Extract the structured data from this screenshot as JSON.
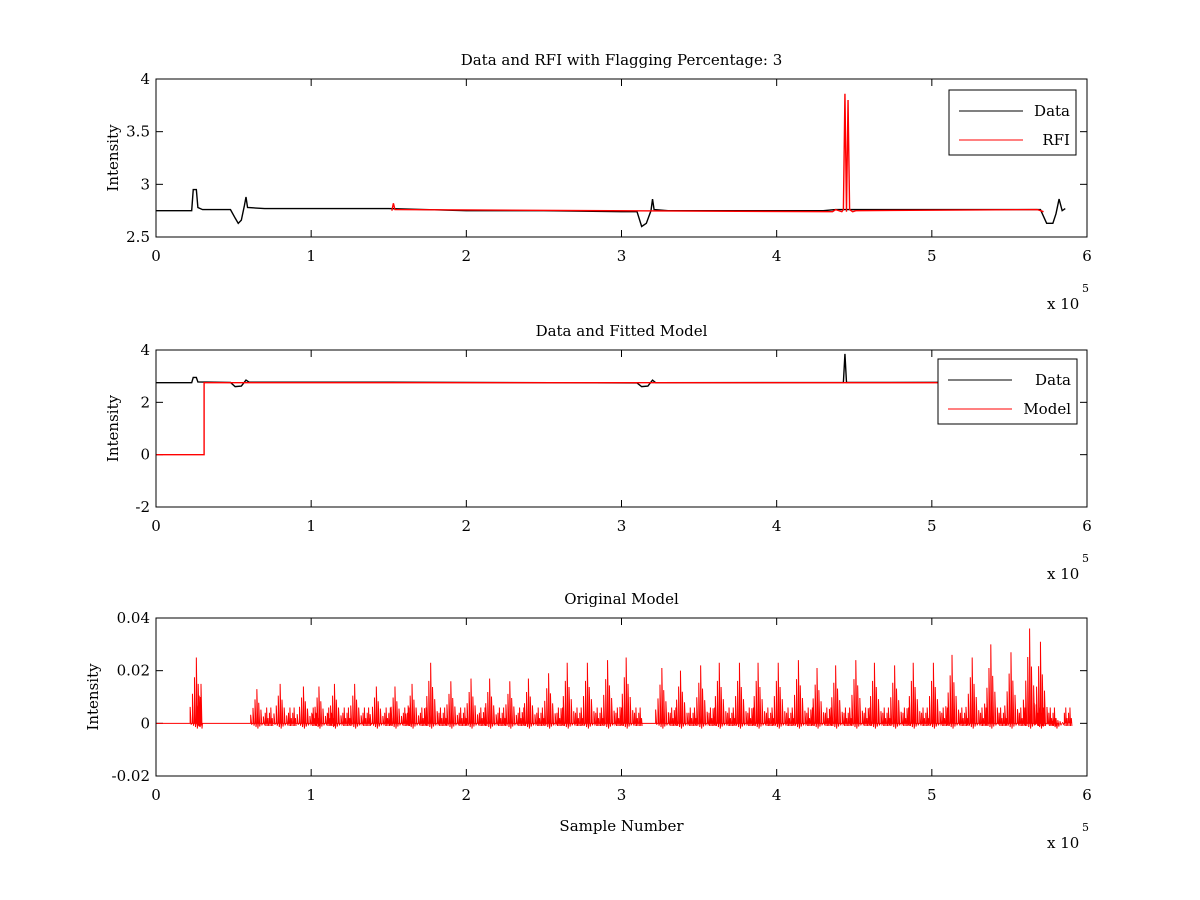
{
  "chart_data": [
    {
      "type": "line",
      "title": "Data and RFI with Flagging Percentage: 3",
      "xlabel": "",
      "ylabel": "Intensity",
      "xlim": [
        0,
        600000
      ],
      "ylim": [
        2.5,
        4
      ],
      "x_exponent_label": "x 10",
      "x_exponent": "5",
      "xticks": [
        0,
        100000,
        200000,
        300000,
        400000,
        500000,
        600000
      ],
      "xtick_labels": [
        "0",
        "1",
        "2",
        "3",
        "4",
        "5",
        "6"
      ],
      "yticks": [
        2.5,
        3,
        3.5,
        4
      ],
      "ytick_labels": [
        "2.5",
        "3",
        "3.5",
        "4"
      ],
      "legend_position": "top-right",
      "series": [
        {
          "name": "Data",
          "color": "#000000",
          "x": [
            0,
            23000,
            24000,
            26000,
            27000,
            30000,
            48000,
            51000,
            53000,
            55000,
            57000,
            58000,
            59000,
            70000,
            100000,
            150000,
            200000,
            250000,
            300000,
            310000,
            313000,
            316000,
            319000,
            320000,
            321000,
            330000,
            380000,
            430000,
            438000,
            440000,
            443000,
            446000,
            448000,
            455000,
            500000,
            550000,
            570000,
            574000,
            578000,
            580000,
            582000,
            584000,
            586000
          ],
          "y": [
            2.75,
            2.75,
            2.95,
            2.95,
            2.78,
            2.76,
            2.76,
            2.68,
            2.63,
            2.66,
            2.8,
            2.88,
            2.78,
            2.77,
            2.77,
            2.77,
            2.75,
            2.75,
            2.74,
            2.74,
            2.6,
            2.63,
            2.75,
            2.86,
            2.76,
            2.75,
            2.75,
            2.75,
            2.76,
            2.76,
            2.76,
            2.76,
            2.76,
            2.76,
            2.76,
            2.76,
            2.76,
            2.63,
            2.63,
            2.72,
            2.86,
            2.75,
            2.77
          ]
        },
        {
          "name": "RFI",
          "color": "#ff0000",
          "x": [
            152000,
            153000,
            154000,
            436000,
            438000,
            442000,
            443000,
            444000,
            445000,
            446000,
            447000,
            449000,
            451000,
            568000,
            572000
          ],
          "y": [
            2.75,
            2.82,
            2.76,
            2.74,
            2.76,
            2.74,
            2.76,
            3.86,
            2.74,
            3.8,
            2.76,
            2.74,
            2.75,
            2.76,
            2.74
          ]
        }
      ]
    },
    {
      "type": "line",
      "title": "Data and Fitted Model",
      "xlabel": "",
      "ylabel": "Intensity",
      "xlim": [
        0,
        600000
      ],
      "ylim": [
        -2,
        4
      ],
      "x_exponent_label": "x 10",
      "x_exponent": "5",
      "xticks": [
        0,
        100000,
        200000,
        300000,
        400000,
        500000,
        600000
      ],
      "xtick_labels": [
        "0",
        "1",
        "2",
        "3",
        "4",
        "5",
        "6"
      ],
      "yticks": [
        -2,
        0,
        2,
        4
      ],
      "ytick_labels": [
        "-2",
        "0",
        "2",
        "4"
      ],
      "legend_position": "top-right",
      "series": [
        {
          "name": "Data",
          "color": "#000000",
          "x": [
            0,
            23000,
            24000,
            26000,
            27000,
            48000,
            51000,
            55000,
            58000,
            60000,
            150000,
            310000,
            313000,
            317000,
            320000,
            322000,
            443000,
            444000,
            445000,
            446000,
            586000
          ],
          "y": [
            2.75,
            2.75,
            2.95,
            2.95,
            2.78,
            2.76,
            2.6,
            2.62,
            2.85,
            2.77,
            2.77,
            2.74,
            2.6,
            2.62,
            2.85,
            2.75,
            2.76,
            3.85,
            2.76,
            2.76,
            2.77
          ]
        },
        {
          "name": "Model",
          "color": "#ff0000",
          "x": [
            0,
            31000,
            31000,
            586000
          ],
          "y": [
            0,
            0,
            2.75,
            2.75
          ]
        }
      ]
    },
    {
      "type": "line",
      "title": "Original Model",
      "xlabel": "Sample Number",
      "ylabel": "Intensity",
      "xlim": [
        0,
        600000
      ],
      "ylim": [
        -0.02,
        0.04
      ],
      "x_exponent_label": "x 10",
      "x_exponent": "5",
      "xticks": [
        0,
        100000,
        200000,
        300000,
        400000,
        500000,
        600000
      ],
      "xtick_labels": [
        "0",
        "1",
        "2",
        "3",
        "4",
        "5",
        "6"
      ],
      "yticks": [
        -0.02,
        0,
        0.02,
        0.04
      ],
      "ytick_labels": [
        "-0.02",
        "0",
        "0.02",
        "0.04"
      ],
      "series": [
        {
          "color": "#ff0000",
          "x_start": 0,
          "x_end": 582000,
          "baseline": 0,
          "gaps": [
            [
              30000,
              58000
            ],
            [
              318000,
              320000
            ]
          ],
          "spikes": [
            {
              "x": 26000,
              "h": 0.025
            },
            {
              "x": 29000,
              "h": 0.015
            },
            {
              "x": 65000,
              "h": 0.013
            },
            {
              "x": 80000,
              "h": 0.015
            },
            {
              "x": 95000,
              "h": 0.014
            },
            {
              "x": 105000,
              "h": 0.014
            },
            {
              "x": 115000,
              "h": 0.015
            },
            {
              "x": 128000,
              "h": 0.015
            },
            {
              "x": 142000,
              "h": 0.014
            },
            {
              "x": 154000,
              "h": 0.014
            },
            {
              "x": 165000,
              "h": 0.015
            },
            {
              "x": 177000,
              "h": 0.023
            },
            {
              "x": 190000,
              "h": 0.016
            },
            {
              "x": 203000,
              "h": 0.017
            },
            {
              "x": 215000,
              "h": 0.017
            },
            {
              "x": 228000,
              "h": 0.016
            },
            {
              "x": 240000,
              "h": 0.017
            },
            {
              "x": 253000,
              "h": 0.019
            },
            {
              "x": 265000,
              "h": 0.023
            },
            {
              "x": 278000,
              "h": 0.023
            },
            {
              "x": 291000,
              "h": 0.024
            },
            {
              "x": 303000,
              "h": 0.025
            },
            {
              "x": 326000,
              "h": 0.021
            },
            {
              "x": 338000,
              "h": 0.02
            },
            {
              "x": 351000,
              "h": 0.022
            },
            {
              "x": 363000,
              "h": 0.023
            },
            {
              "x": 376000,
              "h": 0.023
            },
            {
              "x": 388000,
              "h": 0.023
            },
            {
              "x": 401000,
              "h": 0.023
            },
            {
              "x": 414000,
              "h": 0.024
            },
            {
              "x": 426000,
              "h": 0.021
            },
            {
              "x": 438000,
              "h": 0.022
            },
            {
              "x": 451000,
              "h": 0.024
            },
            {
              "x": 463000,
              "h": 0.023
            },
            {
              "x": 476000,
              "h": 0.022
            },
            {
              "x": 488000,
              "h": 0.023
            },
            {
              "x": 501000,
              "h": 0.023
            },
            {
              "x": 513000,
              "h": 0.026
            },
            {
              "x": 526000,
              "h": 0.025
            },
            {
              "x": 538000,
              "h": 0.03
            },
            {
              "x": 551000,
              "h": 0.027
            },
            {
              "x": 563000,
              "h": 0.036
            },
            {
              "x": 570000,
              "h": 0.031
            },
            {
              "x": 580000,
              "h": 0.002
            }
          ]
        }
      ]
    }
  ]
}
